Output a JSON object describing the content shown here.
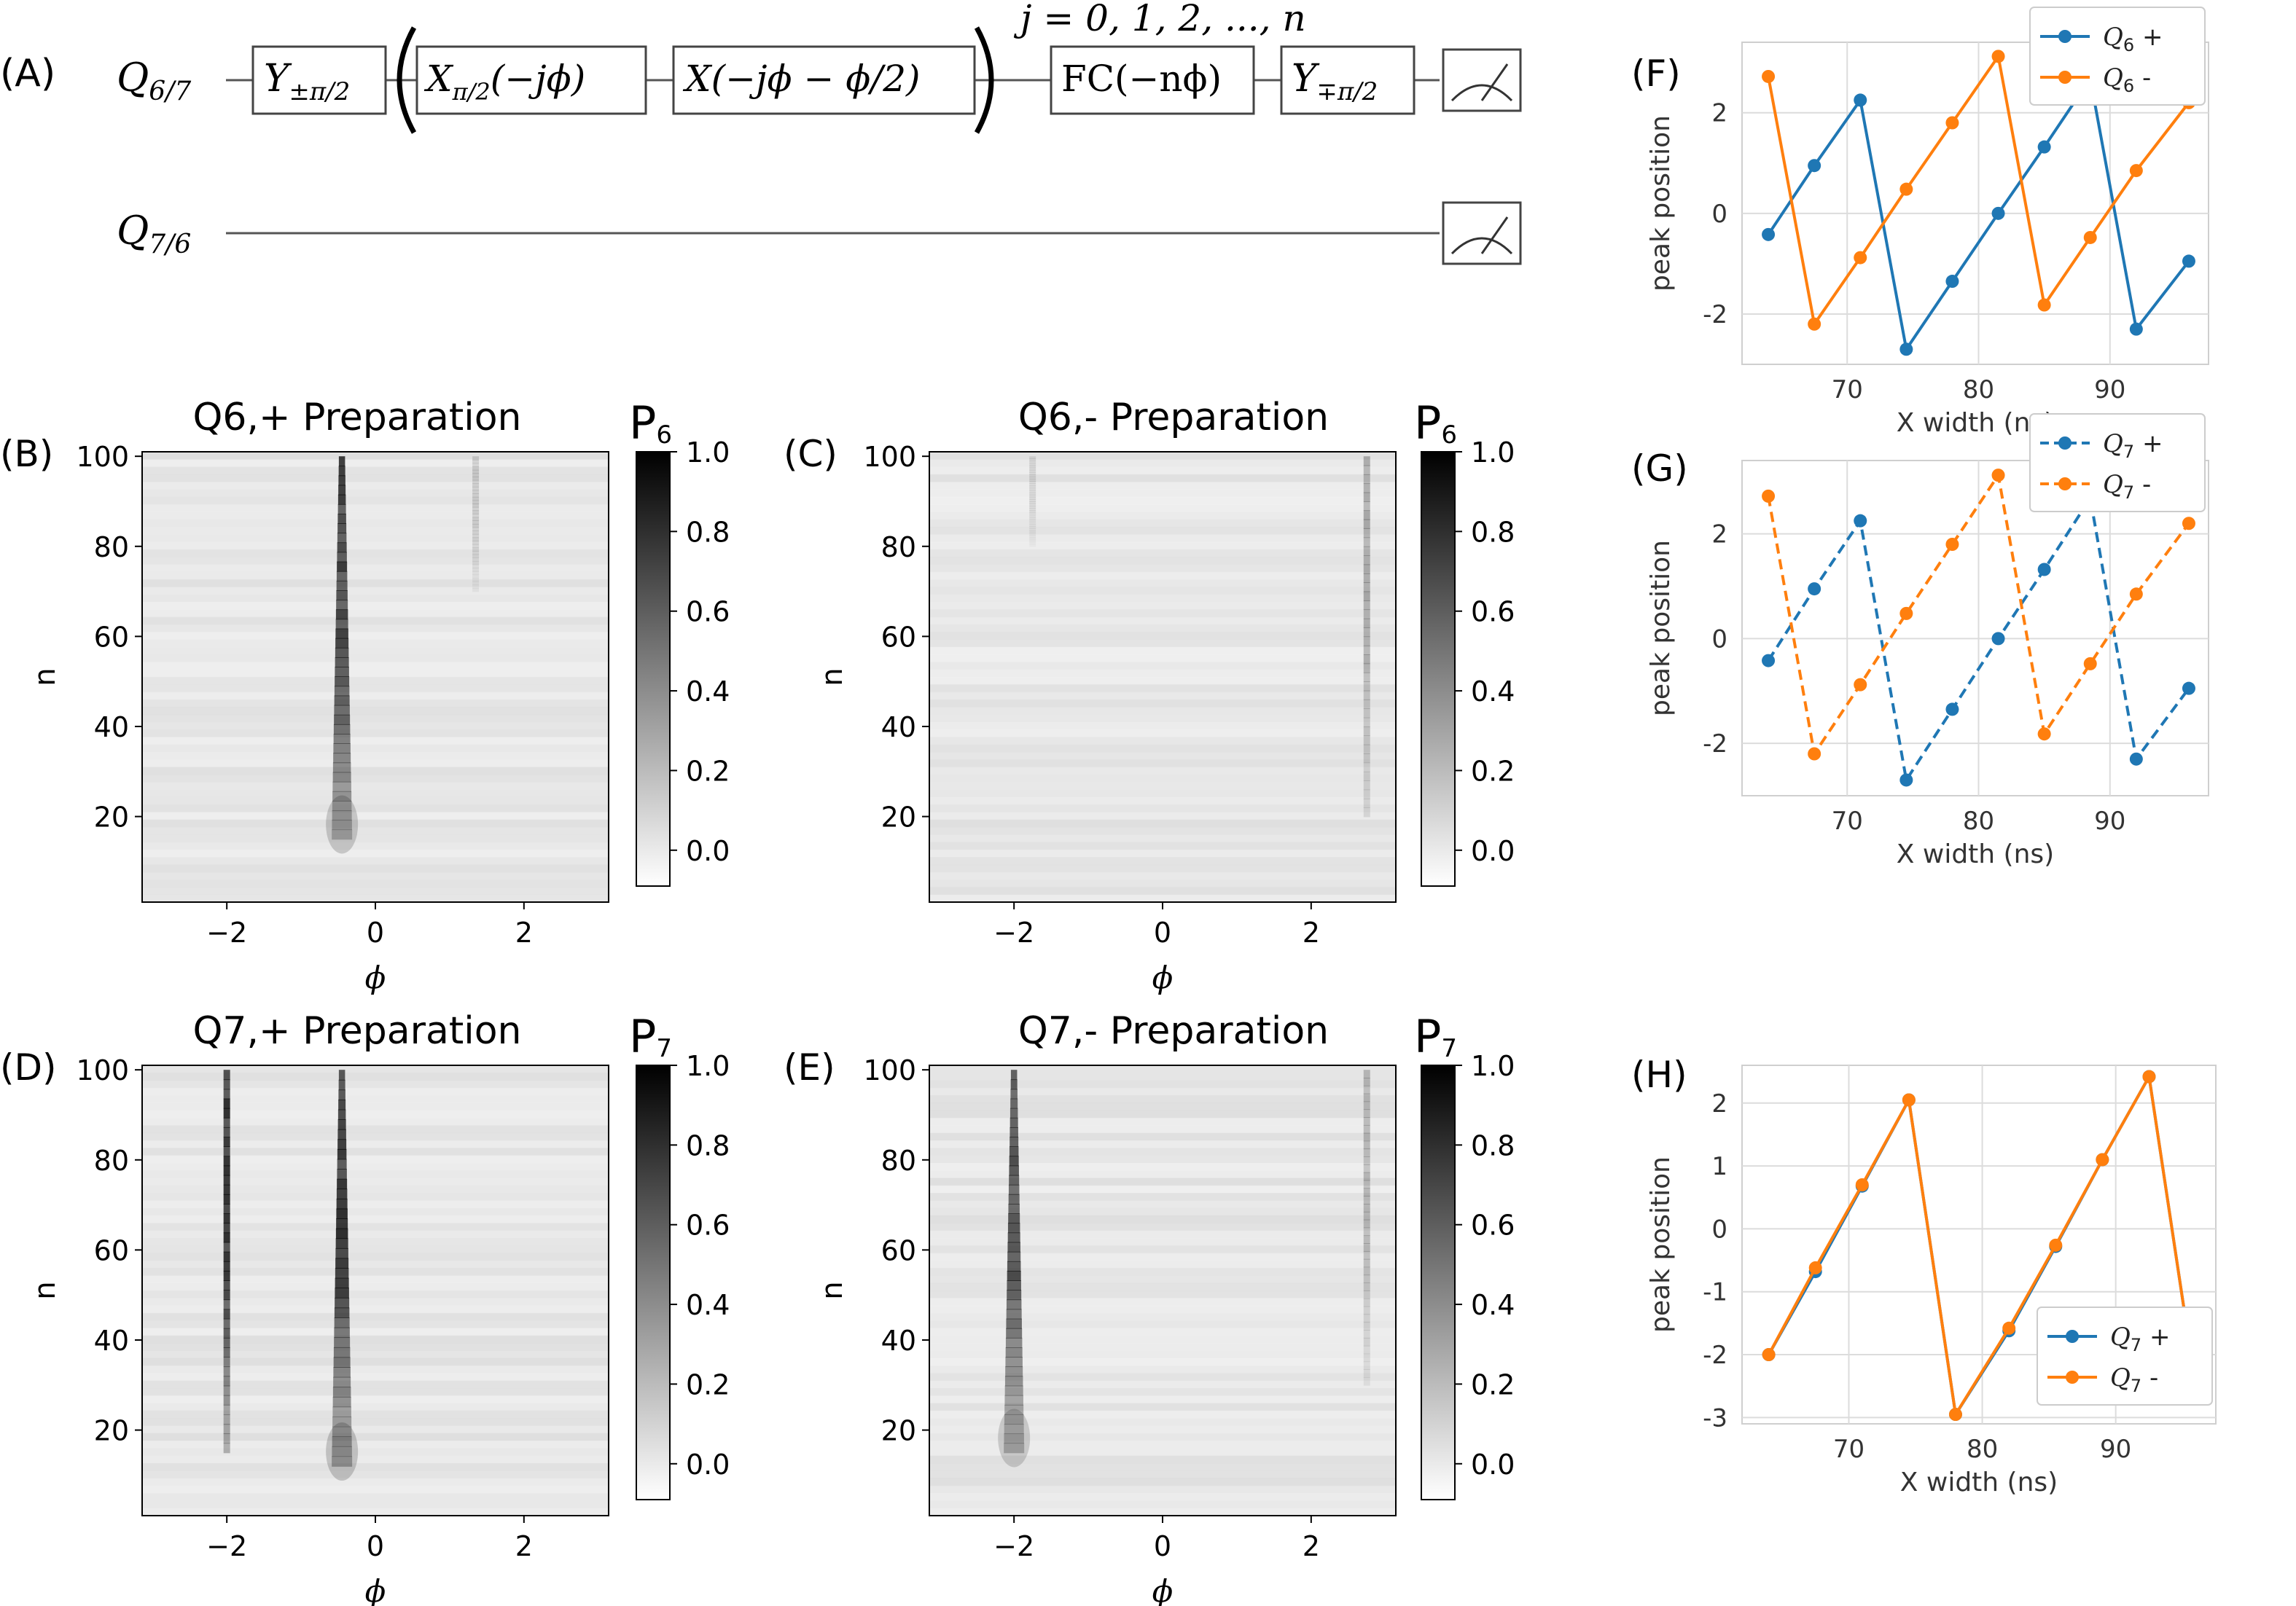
{
  "panel_labels": {
    "A": "(A)",
    "B": "(B)",
    "C": "(C)",
    "D": "(D)",
    "E": "(E)",
    "F": "(F)",
    "G": "(G)",
    "H": "(H)"
  },
  "circuit": {
    "top_wire": {
      "q": "Q",
      "sub": "6/7"
    },
    "bottom_wire": {
      "q": "Q",
      "sub": "7/6"
    },
    "repeat_label": "j = 0, 1, 2, ..., n",
    "gates": [
      {
        "main": "Y",
        "sub": "±π/2"
      },
      {
        "main": "X",
        "sub": "π/2",
        "arg": "(−jϕ)"
      },
      {
        "main": "X(−jϕ − ϕ/2)",
        "sub": ""
      },
      {
        "main": "FC(−nϕ)",
        "sub": ""
      },
      {
        "main": "Y",
        "sub": "∓π/2"
      }
    ]
  },
  "colorbar_ticks": [
    "1.0",
    "0.8",
    "0.6",
    "0.4",
    "0.2",
    "0.0"
  ],
  "heatmaps": [
    {
      "label": "B",
      "title": "Q6,+ Preparation",
      "cb_letter": "P",
      "cb_sub": "6",
      "xlabel": "ϕ",
      "ylabel": "n",
      "xticks": [
        "−2",
        "0",
        "2"
      ],
      "yticks": [
        "100",
        "80",
        "60",
        "40",
        "20"
      ],
      "x_range": [
        -3.14,
        3.14
      ],
      "y_range": [
        1,
        101
      ],
      "streaks": [
        {
          "phi": -0.45,
          "start_n": 15,
          "strength": 0.65,
          "flare": true
        },
        {
          "phi": 1.35,
          "start_n": 70,
          "strength": 0.12
        }
      ]
    },
    {
      "label": "C",
      "title": "Q6,- Preparation",
      "cb_letter": "P",
      "cb_sub": "6",
      "xlabel": "ϕ",
      "ylabel": "n",
      "xticks": [
        "−2",
        "0",
        "2"
      ],
      "yticks": [
        "100",
        "80",
        "60",
        "40",
        "20"
      ],
      "x_range": [
        -3.14,
        3.14
      ],
      "y_range": [
        1,
        101
      ],
      "streaks": [
        {
          "phi": 2.75,
          "start_n": 20,
          "strength": 0.25
        },
        {
          "phi": -1.75,
          "start_n": 80,
          "strength": 0.08
        }
      ]
    },
    {
      "label": "D",
      "title": "Q7,+ Preparation",
      "cb_letter": "P",
      "cb_sub": "7",
      "xlabel": "ϕ",
      "ylabel": "n",
      "xticks": [
        "−2",
        "0",
        "2"
      ],
      "yticks": [
        "100",
        "80",
        "60",
        "40",
        "20"
      ],
      "x_range": [
        -3.14,
        3.14
      ],
      "y_range": [
        1,
        101
      ],
      "streaks": [
        {
          "phi": -2.0,
          "start_n": 15,
          "strength": 0.7
        },
        {
          "phi": -0.45,
          "start_n": 12,
          "strength": 0.7,
          "flare": true
        }
      ]
    },
    {
      "label": "E",
      "title": "Q7,- Preparation",
      "cb_letter": "P",
      "cb_sub": "7",
      "xlabel": "ϕ",
      "ylabel": "n",
      "xticks": [
        "−2",
        "0",
        "2"
      ],
      "yticks": [
        "100",
        "80",
        "60",
        "40",
        "20"
      ],
      "x_range": [
        -3.14,
        3.14
      ],
      "y_range": [
        1,
        101
      ],
      "streaks": [
        {
          "phi": -2.0,
          "start_n": 15,
          "strength": 0.6,
          "flare": true
        },
        {
          "phi": 2.75,
          "start_n": 30,
          "strength": 0.2
        }
      ]
    }
  ],
  "chart_data": [
    {
      "type": "line",
      "panel": "F",
      "xlabel": "X width (ns)",
      "ylabel": "peak position",
      "xlim": [
        62,
        97.5
      ],
      "ylim": [
        -3.0,
        3.4
      ],
      "xticks": [
        70,
        80,
        90
      ],
      "yticks": [
        2,
        0,
        -2
      ],
      "legend": "top-right",
      "style": "solid",
      "series": [
        {
          "name": "+",
          "qsub": "6",
          "color": "#1f77b4",
          "x": [
            64,
            67.5,
            71,
            74.5,
            78,
            81.5,
            85,
            88.5,
            92,
            96
          ],
          "y": [
            -0.42,
            0.95,
            2.25,
            -2.7,
            -1.35,
            0.0,
            1.32,
            2.68,
            -2.3,
            -0.95
          ]
        },
        {
          "name": "-",
          "qsub": "6",
          "color": "#ff7f0e",
          "x": [
            64,
            67.5,
            71,
            74.5,
            78,
            81.5,
            85,
            88.5,
            92,
            96
          ],
          "y": [
            2.72,
            -2.2,
            -0.88,
            0.48,
            1.8,
            3.12,
            -1.82,
            -0.48,
            0.85,
            2.2
          ]
        }
      ]
    },
    {
      "type": "line",
      "panel": "G",
      "xlabel": "X width (ns)",
      "ylabel": "peak position",
      "xlim": [
        62,
        97.5
      ],
      "ylim": [
        -3.0,
        3.4
      ],
      "xticks": [
        70,
        80,
        90
      ],
      "yticks": [
        2,
        0,
        -2
      ],
      "legend": "top-right",
      "style": "dashed",
      "series": [
        {
          "name": "+",
          "qsub": "7",
          "color": "#1f77b4",
          "x": [
            64,
            67.5,
            71,
            74.5,
            78,
            81.5,
            85,
            88.5,
            92,
            96
          ],
          "y": [
            -0.42,
            0.95,
            2.25,
            -2.7,
            -1.35,
            0.0,
            1.32,
            2.68,
            -2.3,
            -0.95
          ]
        },
        {
          "name": "-",
          "qsub": "7",
          "color": "#ff7f0e",
          "x": [
            64,
            67.5,
            71,
            74.5,
            78,
            81.5,
            85,
            88.5,
            92,
            96
          ],
          "y": [
            2.72,
            -2.2,
            -0.88,
            0.48,
            1.8,
            3.12,
            -1.82,
            -0.48,
            0.85,
            2.2
          ]
        }
      ]
    },
    {
      "type": "line",
      "panel": "H",
      "xlabel": "X width (ns)",
      "ylabel": "peak position",
      "xlim": [
        62,
        97.5
      ],
      "ylim": [
        -3.1,
        2.6
      ],
      "xticks": [
        70,
        80,
        90
      ],
      "yticks": [
        2,
        1,
        0,
        -1,
        -2,
        -3
      ],
      "legend": "lower-right",
      "style": "solid",
      "series": [
        {
          "name": "+",
          "qsub": "7",
          "color": "#1f77b4",
          "x": [
            64,
            67.5,
            71,
            74.5,
            78,
            82,
            85.5,
            89,
            92.5,
            96
          ],
          "y": [
            -2.0,
            -0.68,
            0.68,
            2.05,
            -2.95,
            -1.62,
            -0.28,
            1.1,
            2.42,
            -2.52
          ]
        },
        {
          "name": "-",
          "qsub": "7",
          "color": "#ff7f0e",
          "x": [
            64,
            67.5,
            71,
            74.5,
            78,
            82,
            85.5,
            89,
            92.5,
            96
          ],
          "y": [
            -2.0,
            -0.62,
            0.7,
            2.05,
            -2.95,
            -1.58,
            -0.26,
            1.1,
            2.42,
            -2.52
          ]
        }
      ]
    }
  ]
}
